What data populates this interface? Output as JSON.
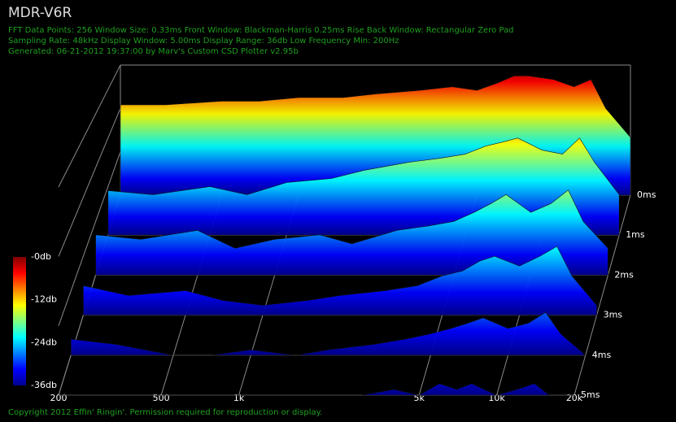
{
  "chart_data": {
    "type": "waterfall",
    "title": "MDR-V6R",
    "info_lines": [
      "FFT Data Points: 256   Window Size: 0.33ms    Front Window: Blackman-Harris 0.25ms Rise    Back Window: Rectangular Zero Pad",
      "Sampling Rate: 48kHz   Display Window: 5.00ms    Display Range: 36db   Low Frequency Min: 200Hz",
      "Generated: 06-21-2012 19:37:00 by Marv's Custom CSD Plotter v2.95b"
    ],
    "footer": "Copyright 2012 Effin' Ringin'. Permission required for reproduction or display.",
    "x": [
      200,
      300,
      500,
      700,
      1000,
      1500,
      2000,
      3000,
      4000,
      5000,
      6000,
      7000,
      8000,
      10000,
      12000,
      14000,
      16000,
      20000
    ],
    "xlim": [
      200,
      20000
    ],
    "log_x": true,
    "xticks": [
      200,
      500,
      {
        "value": 1000,
        "label": "1k"
      },
      {
        "value": 5000,
        "label": "5k"
      },
      {
        "value": 10000,
        "label": "10k"
      },
      {
        "value": 20000,
        "label": "20k"
      }
    ],
    "ylim": [
      0,
      5
    ],
    "yticks": [
      {
        "value": 0,
        "label": "0ms"
      },
      {
        "value": 1,
        "label": "1ms"
      },
      {
        "value": 2,
        "label": "2ms"
      },
      {
        "value": 3,
        "label": "3ms"
      },
      {
        "value": 4,
        "label": "4ms"
      },
      {
        "value": 5,
        "label": "5ms"
      }
    ],
    "zlim": [
      -36,
      0
    ],
    "zticks": [
      {
        "value": 0,
        "label": "-0db"
      },
      {
        "value": -12,
        "label": "-12db"
      },
      {
        "value": -24,
        "label": "-24db"
      },
      {
        "value": -36,
        "label": "-36db"
      }
    ],
    "slices": [
      {
        "t": 0,
        "values": [
          -11,
          -11,
          -10,
          -10,
          -9,
          -9,
          -8,
          -7,
          -6,
          -7,
          -5,
          -3,
          -3,
          -4,
          -6,
          -4,
          -12,
          -20
        ]
      },
      {
        "t": 1,
        "values": [
          -25,
          -26,
          -24,
          -26,
          -23,
          -22,
          -20,
          -18,
          -17,
          -16,
          -14,
          -13,
          -12,
          -15,
          -16,
          -12,
          -18,
          -26
        ]
      },
      {
        "t": 2,
        "values": [
          -27,
          -28,
          -26,
          -30,
          -28,
          -27,
          -29,
          -26,
          -25,
          -24,
          -22,
          -20,
          -18,
          -22,
          -20,
          -17,
          -24,
          -30
        ]
      },
      {
        "t": 3,
        "values": [
          -30,
          -32,
          -31,
          -33,
          -34,
          -33,
          -32,
          -31,
          -30,
          -28,
          -27,
          -25,
          -24,
          -26,
          -24,
          -22,
          -28,
          -34
        ]
      },
      {
        "t": 4,
        "values": [
          -33,
          -34,
          -36,
          -36,
          -35,
          -36,
          -35,
          -34,
          -33,
          -32,
          -31,
          -30,
          -29,
          -31,
          -30,
          -28,
          -32,
          -36
        ]
      },
      {
        "t": 5,
        "values": [
          -36,
          -36,
          -36,
          -36,
          -36,
          -36,
          -36,
          -36,
          -35,
          -36,
          -34,
          -35,
          -34,
          -36,
          -35,
          -34,
          -36,
          -36
        ]
      }
    ]
  }
}
